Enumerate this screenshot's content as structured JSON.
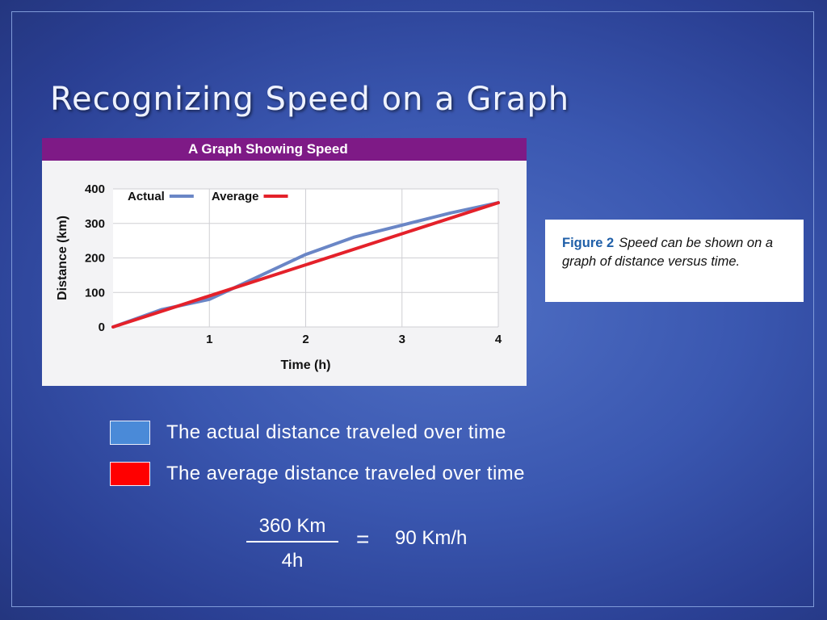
{
  "slide": {
    "title": "Recognizing Speed on a Graph"
  },
  "chart_data": {
    "type": "line",
    "title": "A Graph Showing Speed",
    "xlabel": "Time (h)",
    "ylabel": "Distance (km)",
    "xlim": [
      0,
      4
    ],
    "ylim": [
      0,
      400
    ],
    "x_ticks": [
      "1",
      "2",
      "3",
      "4"
    ],
    "y_ticks": [
      "0",
      "100",
      "200",
      "300",
      "400"
    ],
    "grid": true,
    "legend_position": "top-left",
    "series": [
      {
        "name": "Actual",
        "color": "#6a86c6",
        "x": [
          0,
          0.5,
          1,
          1.5,
          2,
          2.5,
          3,
          3.5,
          4
        ],
        "y": [
          0,
          50,
          80,
          145,
          210,
          260,
          295,
          330,
          360
        ]
      },
      {
        "name": "Average",
        "color": "#e4212a",
        "x": [
          0,
          4
        ],
        "y": [
          0,
          360
        ]
      }
    ]
  },
  "caption": {
    "label": "Figure 2",
    "text": "Speed can be shown on a graph of distance versus time."
  },
  "legend": [
    {
      "color": "#4a8ad8",
      "text": "The actual distance traveled over time"
    },
    {
      "color": "#ff0000",
      "text": "The average distance traveled over time"
    }
  ],
  "formula": {
    "numerator": "360 Km",
    "denominator": "4h",
    "equals": "=",
    "result": "90 Km/h"
  }
}
